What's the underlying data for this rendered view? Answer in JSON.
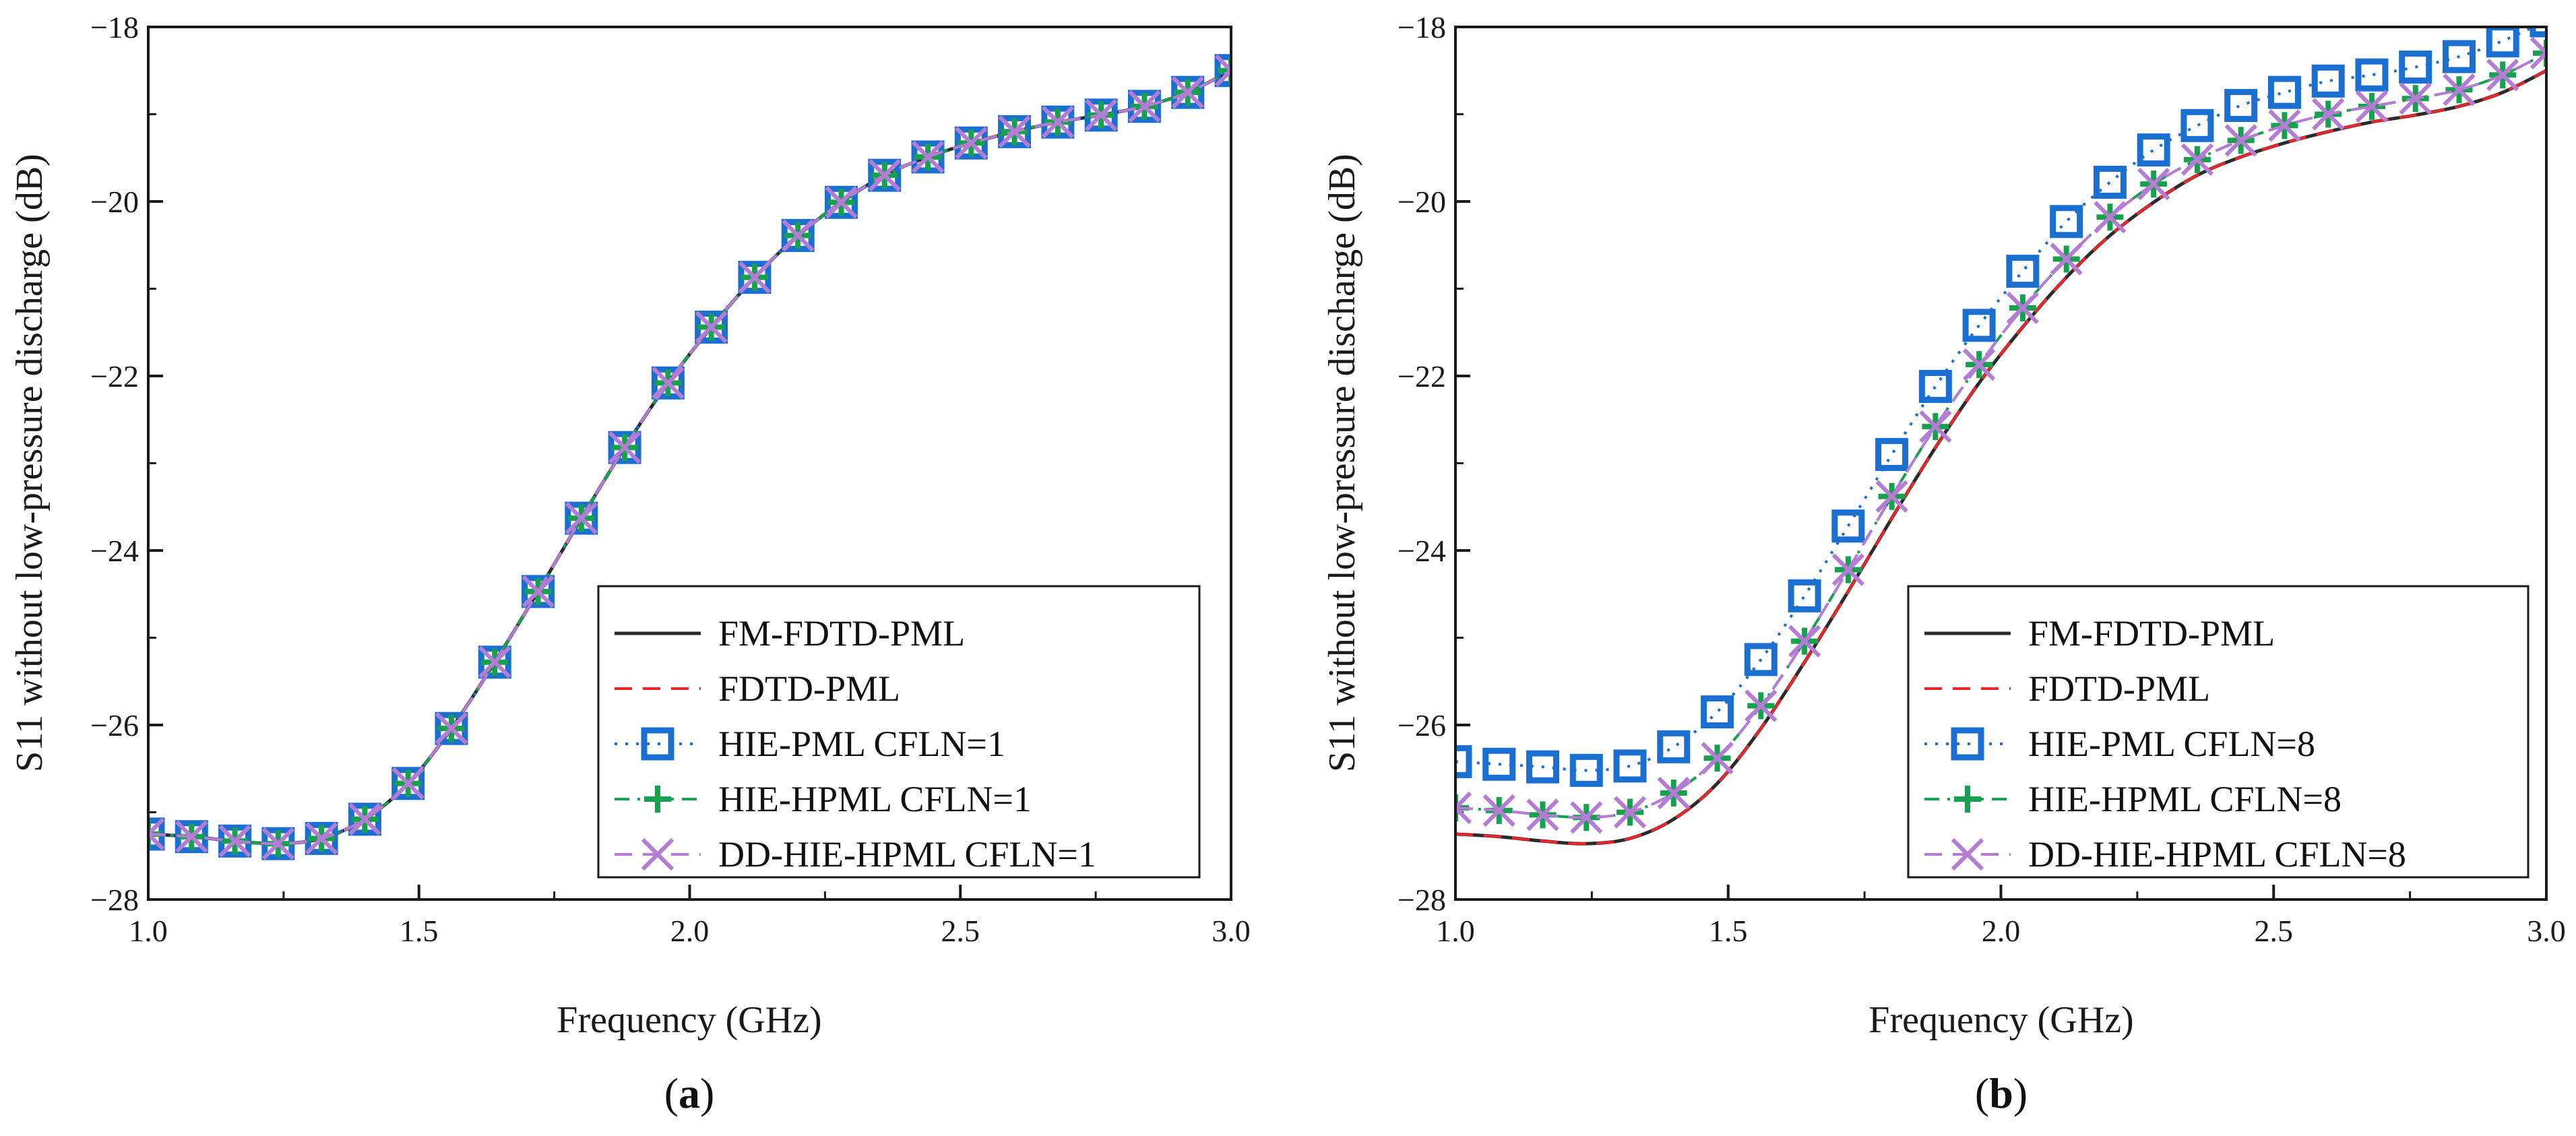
{
  "colors": {
    "fm_fdtd_pml": "#2b2b2b",
    "fdtd_pml": "#e8262b",
    "hie_pml": "#1a6fd0",
    "hie_hpml": "#17a050",
    "dd_hie_hpml": "#b57cd6",
    "axis": "#1a1a1a"
  },
  "chart_data": [
    {
      "id": "a",
      "type": "line",
      "panel_label_open": "(",
      "panel_label_letter": "a",
      "panel_label_close": ")",
      "xlabel": "Frequency (GHz)",
      "ylabel": "S11 without low-pressure discharge (dB)",
      "xlim": [
        1.0,
        3.0
      ],
      "ylim": [
        -28,
        -18
      ],
      "xticks": [
        1.0,
        1.5,
        2.0,
        2.5,
        3.0
      ],
      "xtick_labels": [
        "1.0",
        "1.5",
        "2.0",
        "2.5",
        "3.0"
      ],
      "yticks": [
        -28,
        -26,
        -24,
        -22,
        -20,
        -18
      ],
      "ytick_labels": [
        "−28",
        "−26",
        "−24",
        "−22",
        "−20",
        "−18"
      ],
      "legend_position": "bottom-right",
      "series": [
        {
          "name": "FM-FDTD-PML",
          "style": "solid",
          "color_key": "fm_fdtd_pml",
          "marker": "none",
          "x": [
            1.0,
            1.08,
            1.16,
            1.24,
            1.32,
            1.4,
            1.48,
            1.56,
            1.64,
            1.72,
            1.8,
            1.88,
            1.96,
            2.04,
            2.12,
            2.2,
            2.28,
            2.36,
            2.44,
            2.52,
            2.6,
            2.68,
            2.76,
            2.84,
            2.92,
            3.0
          ],
          "values": [
            -27.25,
            -27.28,
            -27.33,
            -27.36,
            -27.3,
            -27.08,
            -26.67,
            -26.04,
            -25.28,
            -24.47,
            -23.63,
            -22.82,
            -22.08,
            -21.44,
            -20.87,
            -20.39,
            -20.01,
            -19.7,
            -19.49,
            -19.33,
            -19.2,
            -19.09,
            -19.01,
            -18.91,
            -18.75,
            -18.5
          ]
        },
        {
          "name": "FDTD-PML",
          "style": "dashed",
          "color_key": "fdtd_pml",
          "marker": "none",
          "x": [
            1.0,
            1.08,
            1.16,
            1.24,
            1.32,
            1.4,
            1.48,
            1.56,
            1.64,
            1.72,
            1.8,
            1.88,
            1.96,
            2.04,
            2.12,
            2.2,
            2.28,
            2.36,
            2.44,
            2.52,
            2.6,
            2.68,
            2.76,
            2.84,
            2.92,
            3.0
          ],
          "values": [
            -27.25,
            -27.28,
            -27.33,
            -27.36,
            -27.3,
            -27.08,
            -26.67,
            -26.04,
            -25.28,
            -24.47,
            -23.63,
            -22.82,
            -22.08,
            -21.44,
            -20.87,
            -20.39,
            -20.01,
            -19.7,
            -19.49,
            -19.33,
            -19.2,
            -19.09,
            -19.01,
            -18.91,
            -18.75,
            -18.5
          ]
        },
        {
          "name": "HIE-PML CFLN=1",
          "style": "dotted",
          "color_key": "hie_pml",
          "marker": "square",
          "x": [
            1.0,
            1.08,
            1.16,
            1.24,
            1.32,
            1.4,
            1.48,
            1.56,
            1.64,
            1.72,
            1.8,
            1.88,
            1.96,
            2.04,
            2.12,
            2.2,
            2.28,
            2.36,
            2.44,
            2.52,
            2.6,
            2.68,
            2.76,
            2.84,
            2.92,
            3.0
          ],
          "values": [
            -27.25,
            -27.28,
            -27.33,
            -27.36,
            -27.3,
            -27.08,
            -26.67,
            -26.04,
            -25.28,
            -24.47,
            -23.63,
            -22.82,
            -22.08,
            -21.44,
            -20.87,
            -20.39,
            -20.01,
            -19.7,
            -19.49,
            -19.33,
            -19.2,
            -19.09,
            -19.01,
            -18.91,
            -18.75,
            -18.5
          ]
        },
        {
          "name": "HIE-HPML CFLN=1",
          "style": "dashdot",
          "color_key": "hie_hpml",
          "marker": "plus",
          "x": [
            1.0,
            1.08,
            1.16,
            1.24,
            1.32,
            1.4,
            1.48,
            1.56,
            1.64,
            1.72,
            1.8,
            1.88,
            1.96,
            2.04,
            2.12,
            2.2,
            2.28,
            2.36,
            2.44,
            2.52,
            2.6,
            2.68,
            2.76,
            2.84,
            2.92,
            3.0
          ],
          "values": [
            -27.25,
            -27.28,
            -27.33,
            -27.36,
            -27.3,
            -27.08,
            -26.67,
            -26.04,
            -25.28,
            -24.47,
            -23.63,
            -22.82,
            -22.08,
            -21.44,
            -20.87,
            -20.39,
            -20.01,
            -19.7,
            -19.49,
            -19.33,
            -19.2,
            -19.09,
            -19.01,
            -18.91,
            -18.75,
            -18.5
          ]
        },
        {
          "name": "DD-HIE-HPML CFLN=1",
          "style": "dashed",
          "color_key": "dd_hie_hpml",
          "marker": "cross",
          "x": [
            1.0,
            1.08,
            1.16,
            1.24,
            1.32,
            1.4,
            1.48,
            1.56,
            1.64,
            1.72,
            1.8,
            1.88,
            1.96,
            2.04,
            2.12,
            2.2,
            2.28,
            2.36,
            2.44,
            2.52,
            2.6,
            2.68,
            2.76,
            2.84,
            2.92,
            3.0
          ],
          "values": [
            -27.25,
            -27.28,
            -27.33,
            -27.36,
            -27.3,
            -27.08,
            -26.67,
            -26.04,
            -25.28,
            -24.47,
            -23.63,
            -22.82,
            -22.08,
            -21.44,
            -20.87,
            -20.39,
            -20.01,
            -19.7,
            -19.49,
            -19.33,
            -19.2,
            -19.09,
            -19.01,
            -18.91,
            -18.75,
            -18.5
          ]
        }
      ]
    },
    {
      "id": "b",
      "type": "line",
      "panel_label_open": "(",
      "panel_label_letter": "b",
      "panel_label_close": ")",
      "xlabel": "Frequency (GHz)",
      "ylabel": "S11 without low-pressure discharge (dB)",
      "xlim": [
        1.0,
        3.0
      ],
      "ylim": [
        -28,
        -18
      ],
      "xticks": [
        1.0,
        1.5,
        2.0,
        2.5,
        3.0
      ],
      "xtick_labels": [
        "1.0",
        "1.5",
        "2.0",
        "2.5",
        "3.0"
      ],
      "yticks": [
        -28,
        -26,
        -24,
        -22,
        -20,
        -18
      ],
      "ytick_labels": [
        "−28",
        "−26",
        "−24",
        "−22",
        "−20",
        "−18"
      ],
      "legend_position": "bottom-right",
      "series": [
        {
          "name": "FM-FDTD-PML",
          "style": "solid",
          "color_key": "fm_fdtd_pml",
          "marker": "none",
          "x": [
            1.0,
            1.08,
            1.16,
            1.24,
            1.32,
            1.4,
            1.48,
            1.56,
            1.64,
            1.72,
            1.8,
            1.88,
            1.96,
            2.04,
            2.12,
            2.2,
            2.28,
            2.36,
            2.44,
            2.52,
            2.6,
            2.68,
            2.76,
            2.84,
            2.92,
            3.0
          ],
          "values": [
            -27.25,
            -27.28,
            -27.33,
            -27.36,
            -27.3,
            -27.08,
            -26.67,
            -26.04,
            -25.28,
            -24.47,
            -23.63,
            -22.82,
            -22.08,
            -21.44,
            -20.87,
            -20.39,
            -20.01,
            -19.7,
            -19.49,
            -19.33,
            -19.2,
            -19.09,
            -19.01,
            -18.91,
            -18.75,
            -18.5
          ]
        },
        {
          "name": "FDTD-PML",
          "style": "dashed",
          "color_key": "fdtd_pml",
          "marker": "none",
          "x": [
            1.0,
            1.08,
            1.16,
            1.24,
            1.32,
            1.4,
            1.48,
            1.56,
            1.64,
            1.72,
            1.8,
            1.88,
            1.96,
            2.04,
            2.12,
            2.2,
            2.28,
            2.36,
            2.44,
            2.52,
            2.6,
            2.68,
            2.76,
            2.84,
            2.92,
            3.0
          ],
          "values": [
            -27.25,
            -27.28,
            -27.33,
            -27.36,
            -27.3,
            -27.08,
            -26.67,
            -26.04,
            -25.28,
            -24.47,
            -23.63,
            -22.82,
            -22.08,
            -21.44,
            -20.87,
            -20.39,
            -20.01,
            -19.7,
            -19.49,
            -19.33,
            -19.2,
            -19.09,
            -19.01,
            -18.91,
            -18.75,
            -18.5
          ]
        },
        {
          "name": "HIE-PML CFLN=8",
          "style": "dotted",
          "color_key": "hie_pml",
          "marker": "square",
          "x": [
            1.0,
            1.08,
            1.16,
            1.24,
            1.32,
            1.4,
            1.48,
            1.56,
            1.64,
            1.72,
            1.8,
            1.88,
            1.96,
            2.04,
            2.12,
            2.2,
            2.28,
            2.36,
            2.44,
            2.52,
            2.6,
            2.68,
            2.76,
            2.84,
            2.92,
            3.0
          ],
          "values": [
            -26.42,
            -26.45,
            -26.48,
            -26.52,
            -26.47,
            -26.25,
            -25.85,
            -25.25,
            -24.52,
            -23.72,
            -22.9,
            -22.12,
            -21.42,
            -20.8,
            -20.23,
            -19.78,
            -19.41,
            -19.13,
            -18.9,
            -18.75,
            -18.62,
            -18.55,
            -18.46,
            -18.34,
            -18.16,
            -17.93
          ]
        },
        {
          "name": "HIE-HPML CFLN=8",
          "style": "dashdot",
          "color_key": "hie_hpml",
          "marker": "plus",
          "x": [
            1.0,
            1.08,
            1.16,
            1.24,
            1.32,
            1.4,
            1.48,
            1.56,
            1.64,
            1.72,
            1.8,
            1.88,
            1.96,
            2.04,
            2.12,
            2.2,
            2.28,
            2.36,
            2.44,
            2.52,
            2.6,
            2.68,
            2.76,
            2.84,
            2.92,
            3.0
          ],
          "values": [
            -26.95,
            -26.98,
            -27.03,
            -27.06,
            -27.0,
            -26.78,
            -26.38,
            -25.78,
            -25.04,
            -24.22,
            -23.38,
            -22.58,
            -21.87,
            -21.22,
            -20.66,
            -20.18,
            -19.8,
            -19.52,
            -19.3,
            -19.13,
            -19.0,
            -18.91,
            -18.82,
            -18.72,
            -18.55,
            -18.3
          ]
        },
        {
          "name": "DD-HIE-HPML CFLN=8",
          "style": "dashed",
          "color_key": "dd_hie_hpml",
          "marker": "cross",
          "x": [
            1.0,
            1.08,
            1.16,
            1.24,
            1.32,
            1.4,
            1.48,
            1.56,
            1.64,
            1.72,
            1.8,
            1.88,
            1.96,
            2.04,
            2.12,
            2.2,
            2.28,
            2.36,
            2.44,
            2.52,
            2.6,
            2.68,
            2.76,
            2.84,
            2.92,
            3.0
          ],
          "values": [
            -26.95,
            -26.98,
            -27.03,
            -27.06,
            -27.0,
            -26.78,
            -26.38,
            -25.78,
            -25.04,
            -24.22,
            -23.38,
            -22.58,
            -21.87,
            -21.22,
            -20.66,
            -20.18,
            -19.8,
            -19.52,
            -19.3,
            -19.13,
            -19.0,
            -18.91,
            -18.82,
            -18.72,
            -18.55,
            -18.3
          ]
        }
      ]
    }
  ]
}
